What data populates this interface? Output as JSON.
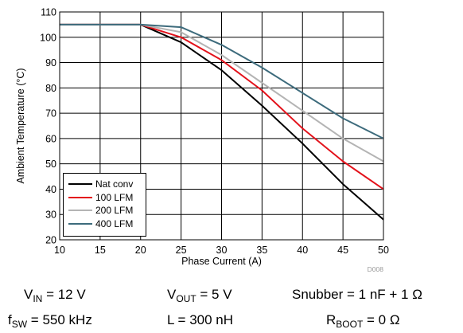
{
  "chart_data": {
    "type": "line",
    "xlabel": "Phase Current (A)",
    "ylabel": "Ambient Temperature (°C)",
    "xlim": [
      10,
      50
    ],
    "ylim": [
      20,
      110
    ],
    "xticks": [
      "10",
      "15",
      "20",
      "25",
      "30",
      "35",
      "40",
      "45",
      "50"
    ],
    "yticks": [
      "20",
      "30",
      "40",
      "50",
      "60",
      "70",
      "80",
      "90",
      "100",
      "110"
    ],
    "grid": true,
    "legend_position": "bottom-left",
    "figure_id": "D008",
    "series": [
      {
        "name": "Nat conv",
        "color": "#000000",
        "x": [
          10,
          20,
          25,
          30,
          35,
          40,
          45,
          50
        ],
        "y": [
          105,
          105,
          98,
          87,
          73,
          58,
          42,
          28
        ]
      },
      {
        "name": "100 LFM",
        "color": "#e3121b",
        "x": [
          10,
          20,
          25,
          30,
          35,
          40,
          45,
          50
        ],
        "y": [
          105,
          105,
          100,
          91,
          79,
          64,
          51,
          40
        ]
      },
      {
        "name": "200 LFM",
        "color": "#b4b4b4",
        "x": [
          10,
          20,
          25,
          30,
          35,
          40,
          45,
          50
        ],
        "y": [
          105,
          105,
          102,
          93,
          82,
          71,
          60,
          51
        ]
      },
      {
        "name": "400 LFM",
        "color": "#3d6b7c",
        "x": [
          10,
          20,
          25,
          30,
          35,
          40,
          45,
          50
        ],
        "y": [
          105,
          105,
          104,
          97,
          88,
          78,
          68,
          60
        ]
      }
    ]
  },
  "conditions": {
    "vin": {
      "sym": "V",
      "sub": "IN",
      "val": " = 12 V"
    },
    "vout": {
      "sym": "V",
      "sub": "OUT",
      "val": " = 5 V"
    },
    "snubber": {
      "text": "Snubber = 1 nF + 1 Ω"
    },
    "fsw": {
      "sym": "f",
      "sub": "SW",
      "val": " = 550 kHz"
    },
    "inductor": {
      "text": "L = 300 nH"
    },
    "rboot": {
      "sym": "R",
      "sub": "BOOT",
      "val": " = 0 Ω"
    }
  }
}
